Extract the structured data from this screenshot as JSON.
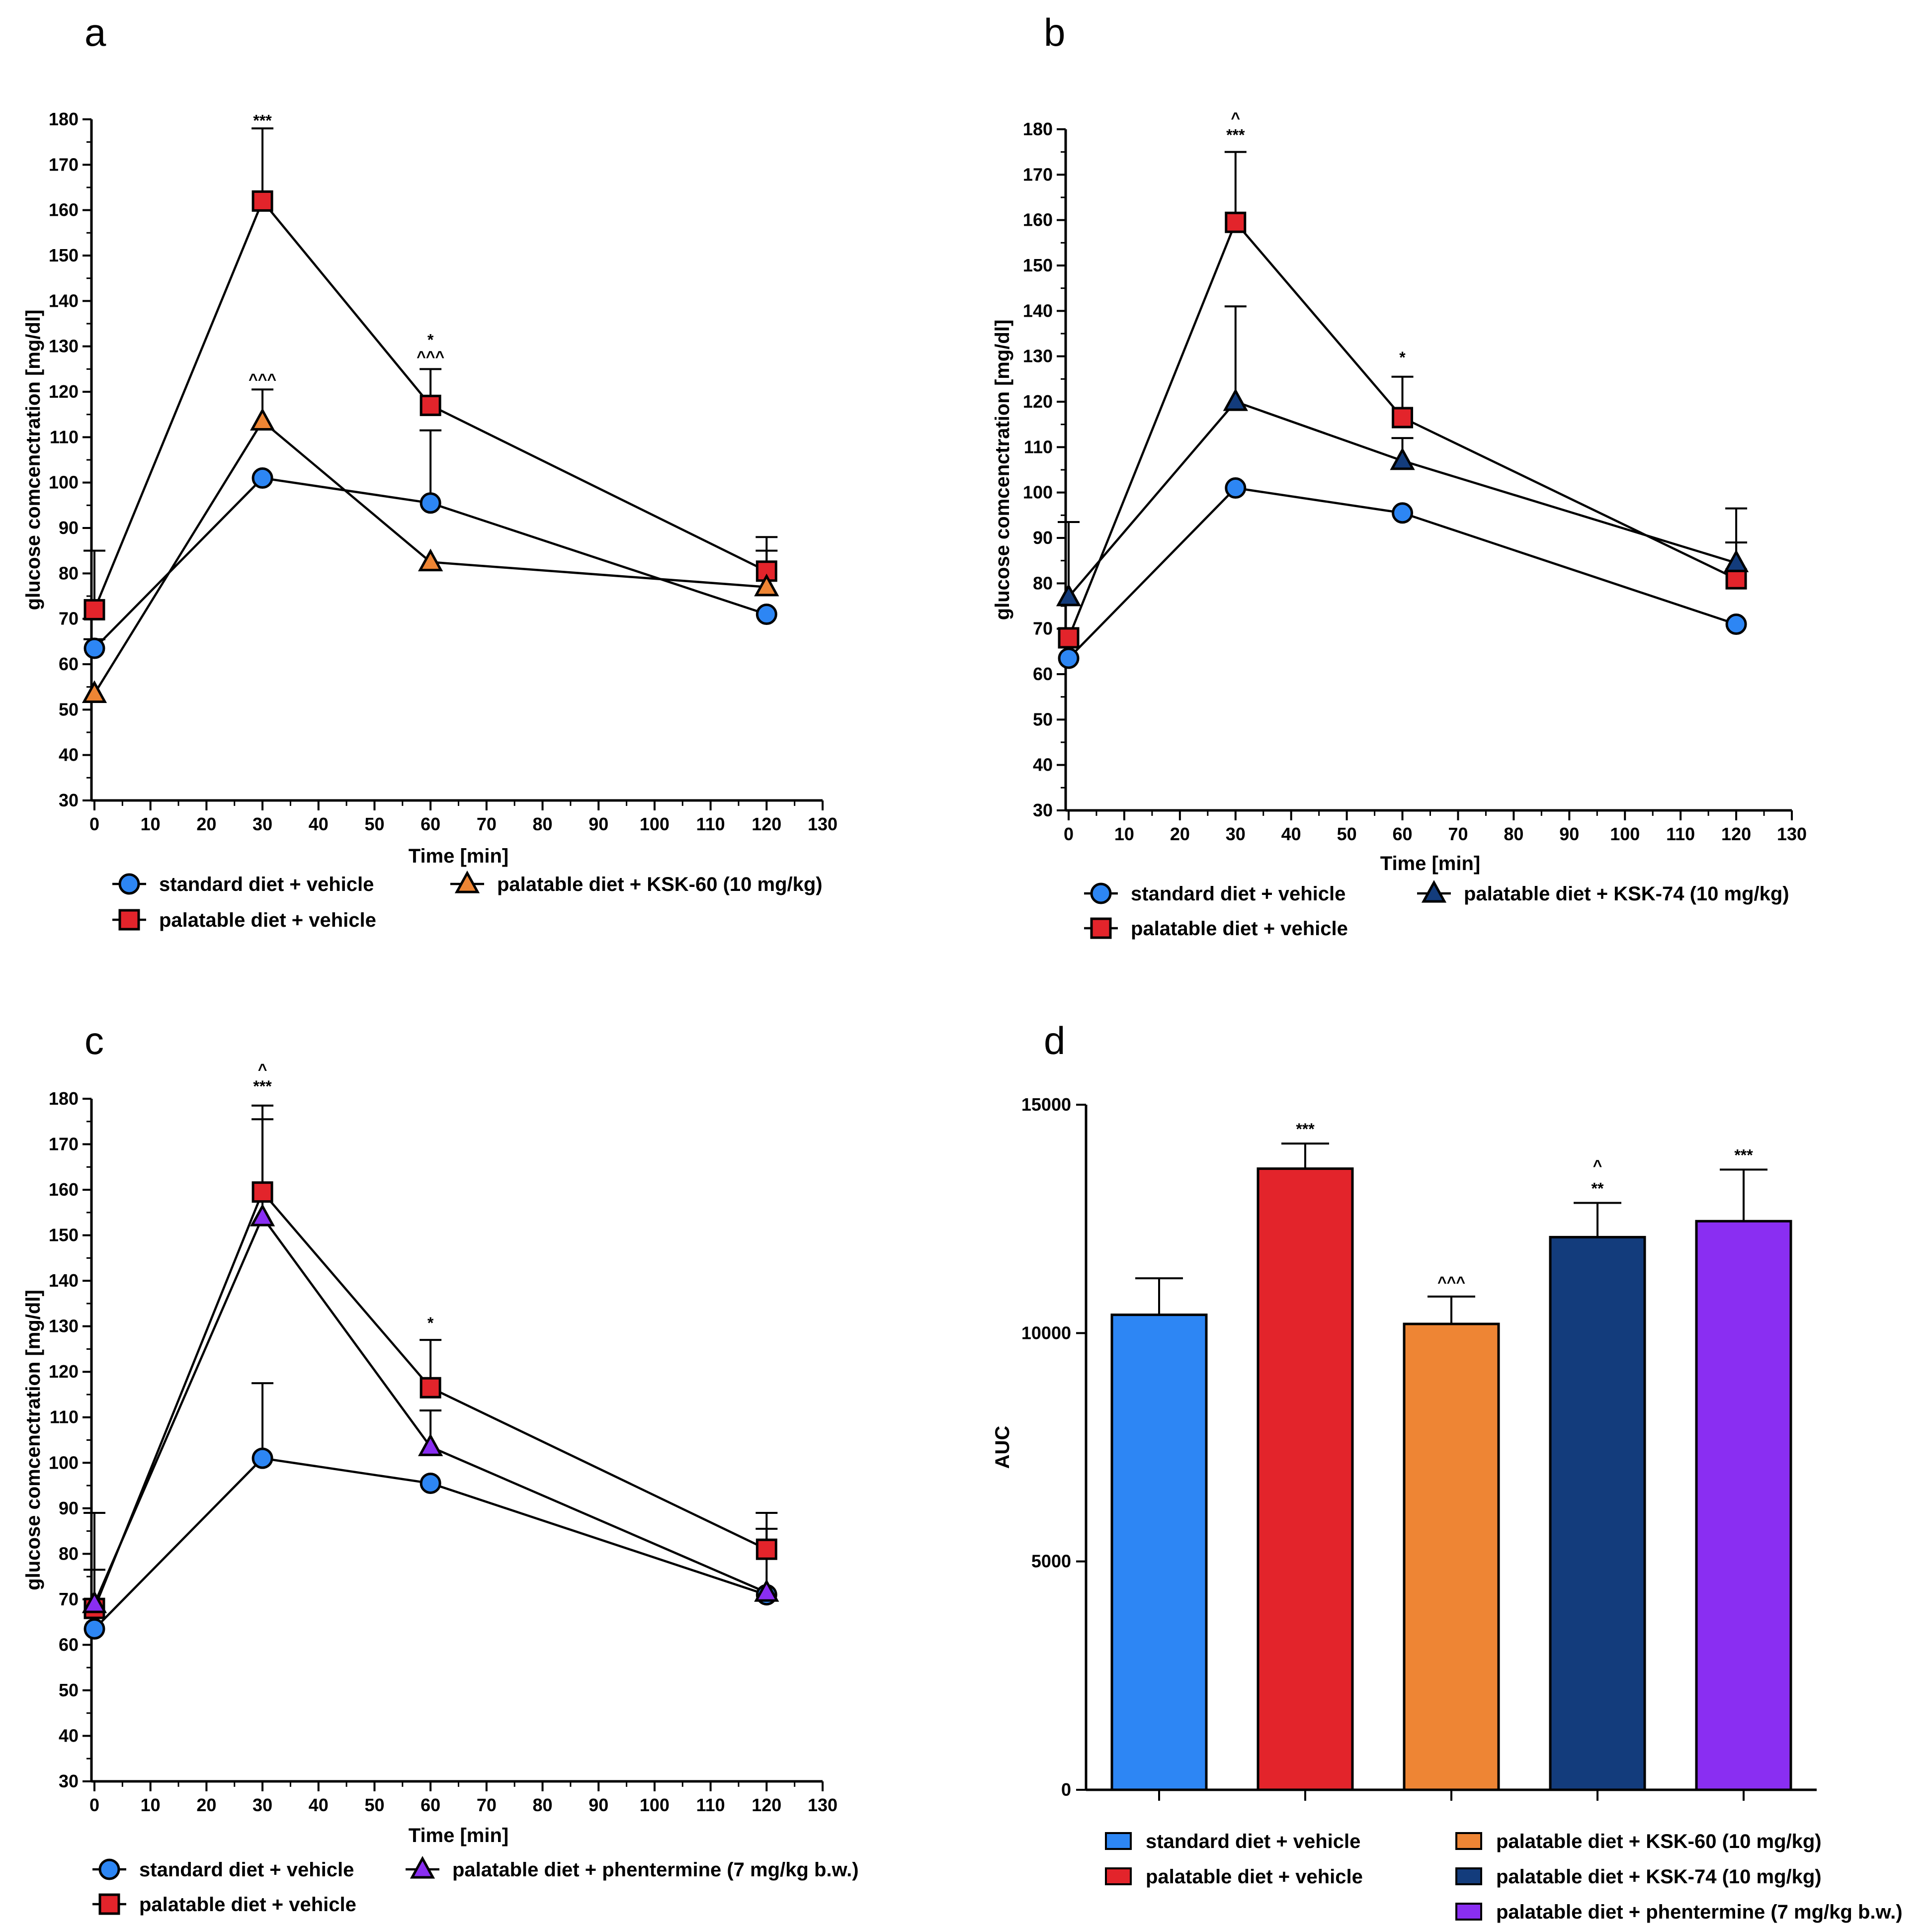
{
  "colors": {
    "blue": "#2d86f4",
    "red": "#e3242b",
    "orange": "#ee8534",
    "navy": "#133c7c",
    "purple": "#8a2ef2",
    "ink": "#000000"
  },
  "chart_data": [
    {
      "id": "a",
      "type": "line",
      "panel_label": "a",
      "xlabel": "Time [min]",
      "ylabel": "glucose comcenctration [mg/dl]",
      "xlim": [
        0,
        130
      ],
      "ylim": [
        30,
        180
      ],
      "xticks": [
        0,
        10,
        20,
        30,
        40,
        50,
        60,
        70,
        80,
        90,
        100,
        110,
        120,
        130
      ],
      "yticks": [
        30,
        40,
        50,
        60,
        70,
        80,
        90,
        100,
        110,
        120,
        130,
        140,
        150,
        160,
        170,
        180
      ],
      "x": [
        0,
        30,
        60,
        120
      ],
      "series": [
        {
          "name": "standard diet + vehicle",
          "marker": "circle",
          "color": "blue",
          "values": [
            63.5,
            101,
            95.5,
            71
          ],
          "err": [
            2,
            0,
            16,
            0
          ]
        },
        {
          "name": "palatable diet + vehicle",
          "marker": "square",
          "color": "red",
          "values": [
            72,
            162,
            117,
            80.5
          ],
          "err": [
            13,
            16,
            8,
            7.5
          ]
        },
        {
          "name": "palatable diet + KSK-60 (10 mg/kg)",
          "marker": "triangle",
          "color": "orange",
          "values": [
            53.5,
            113.5,
            82.5,
            77
          ],
          "err": [
            0,
            7,
            0,
            8
          ]
        }
      ],
      "annotations": [
        {
          "x": 30,
          "y": 177,
          "lines": [
            "***"
          ]
        },
        {
          "x": 30,
          "y": 120,
          "lines": [
            "^^^"
          ]
        },
        {
          "x": 60,
          "y": 125,
          "lines": [
            "*",
            "^^^"
          ]
        }
      ],
      "legend": [
        {
          "series": 0,
          "col": 0,
          "row": 0
        },
        {
          "series": 2,
          "col": 1,
          "row": 0
        },
        {
          "series": 1,
          "col": 0,
          "row": 1
        }
      ]
    },
    {
      "id": "b",
      "type": "line",
      "panel_label": "b",
      "xlabel": "Time [min]",
      "ylabel": "glucose comcenctration [mg/dl]",
      "xlim": [
        0,
        130
      ],
      "ylim": [
        30,
        180
      ],
      "xticks": [
        0,
        10,
        20,
        30,
        40,
        50,
        60,
        70,
        80,
        90,
        100,
        110,
        120,
        130
      ],
      "yticks": [
        30,
        40,
        50,
        60,
        70,
        80,
        90,
        100,
        110,
        120,
        130,
        140,
        150,
        160,
        170,
        180
      ],
      "x": [
        0,
        30,
        60,
        120
      ],
      "series": [
        {
          "name": "standard diet + vehicle",
          "marker": "circle",
          "color": "blue",
          "values": [
            63.5,
            101,
            95.5,
            71
          ],
          "err": [
            0,
            0,
            0,
            0
          ]
        },
        {
          "name": "palatable diet + vehicle",
          "marker": "square",
          "color": "red",
          "values": [
            68,
            159.5,
            116.5,
            81
          ],
          "err": [
            0,
            15.5,
            9,
            8
          ]
        },
        {
          "name": "palatable diet + KSK-74 (10 mg/kg)",
          "marker": "triangle",
          "color": "navy",
          "values": [
            77,
            120,
            107,
            84.5
          ],
          "err": [
            16.5,
            21,
            5,
            12
          ]
        }
      ],
      "annotations": [
        {
          "x": 30,
          "y": 176,
          "lines": [
            "^",
            "***"
          ]
        },
        {
          "x": 60,
          "y": 127,
          "lines": [
            "*"
          ]
        }
      ],
      "legend": [
        {
          "series": 0,
          "col": 0,
          "row": 0
        },
        {
          "series": 2,
          "col": 1,
          "row": 0
        },
        {
          "series": 1,
          "col": 0,
          "row": 1
        }
      ]
    },
    {
      "id": "c",
      "type": "line",
      "panel_label": "c",
      "xlabel": "Time [min]",
      "ylabel": "glucose comcenctration [mg/dl]",
      "xlim": [
        0,
        130
      ],
      "ylim": [
        30,
        180
      ],
      "xticks": [
        0,
        10,
        20,
        30,
        40,
        50,
        60,
        70,
        80,
        90,
        100,
        110,
        120,
        130
      ],
      "yticks": [
        30,
        40,
        50,
        60,
        70,
        80,
        90,
        100,
        110,
        120,
        130,
        140,
        150,
        160,
        170,
        180
      ],
      "x": [
        0,
        30,
        60,
        120
      ],
      "series": [
        {
          "name": "standard diet + vehicle",
          "marker": "circle",
          "color": "blue",
          "values": [
            63.5,
            101,
            95.5,
            71
          ],
          "err": [
            0,
            16.5,
            0,
            0
          ]
        },
        {
          "name": "palatable diet + vehicle",
          "marker": "square",
          "color": "red",
          "values": [
            68,
            159.5,
            116.5,
            81
          ],
          "err": [
            21,
            19,
            10.5,
            8
          ]
        },
        {
          "name": "palatable diet + phentermine (7 mg/kg b.w.)",
          "marker": "triangle",
          "color": "purple",
          "values": [
            69,
            154,
            103.5,
            71.5
          ],
          "err": [
            7.5,
            21.5,
            8,
            14
          ]
        }
      ],
      "annotations": [
        {
          "x": 30,
          "y": 180,
          "lines": [
            "^",
            "***"
          ]
        },
        {
          "x": 60,
          "y": 128,
          "lines": [
            "*"
          ]
        }
      ],
      "legend": [
        {
          "series": 0,
          "col": 0,
          "row": 0
        },
        {
          "series": 2,
          "col": 1,
          "row": 0
        },
        {
          "series": 1,
          "col": 0,
          "row": 1
        }
      ]
    },
    {
      "id": "d",
      "type": "bar",
      "panel_label": "d",
      "ylabel": "AUC",
      "ylim": [
        0,
        15000
      ],
      "yticks": [
        0,
        5000,
        10000,
        15000
      ],
      "categories": [
        "standard diet + vehicle",
        "palatable diet + vehicle",
        "palatable diet + KSK-60 (10 mg/kg)",
        "palatable diet + KSK-74 (10 mg/kg)",
        "palatable diet + phentermine (7 mg/kg b.w.)"
      ],
      "bar_colors": [
        "blue",
        "red",
        "orange",
        "navy",
        "purple"
      ],
      "values": [
        10400,
        13600,
        10200,
        12100,
        12450
      ],
      "err": [
        800,
        550,
        600,
        750,
        1130
      ],
      "annotations": [
        {
          "bar": 1,
          "lines": [
            "***"
          ]
        },
        {
          "bar": 2,
          "lines": [
            "^^^"
          ]
        },
        {
          "bar": 3,
          "lines": [
            "^",
            "**"
          ]
        },
        {
          "bar": 4,
          "lines": [
            "***"
          ]
        }
      ],
      "legend": [
        {
          "bar": 0,
          "col": 0,
          "row": 0
        },
        {
          "bar": 1,
          "col": 0,
          "row": 1
        },
        {
          "bar": 2,
          "col": 1,
          "row": 0
        },
        {
          "bar": 3,
          "col": 1,
          "row": 1
        },
        {
          "bar": 4,
          "col": 1,
          "row": 2
        }
      ]
    }
  ]
}
